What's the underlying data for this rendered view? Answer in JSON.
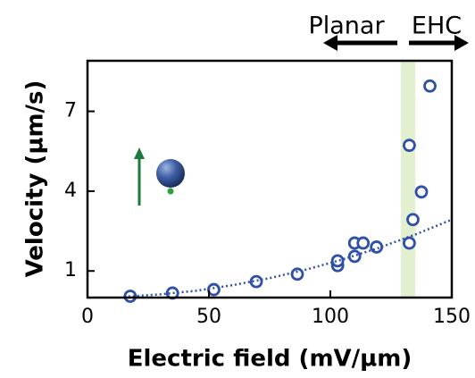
{
  "chart_data": {
    "type": "scatter",
    "x_label": "Electric field (mV/µm)",
    "y_label": "Velocity (µm/s)",
    "xlim": [
      0,
      150
    ],
    "ylim": [
      0,
      8.9
    ],
    "xticks": [
      0,
      50,
      100,
      150
    ],
    "yticks": [
      1,
      4,
      7
    ],
    "band": {
      "xrange": [
        129,
        135
      ],
      "color": "#e3f0d0"
    },
    "annotations": [
      {
        "text": "Planar",
        "direction": "left"
      },
      {
        "text": "EHC",
        "direction": "right"
      }
    ],
    "series": [
      {
        "style": "markers",
        "color": "#2f4fa8",
        "x": [
          17.6,
          35,
          52,
          69.5,
          86.4,
          103,
          103,
          110,
          110,
          113.5,
          119,
          132.5,
          134,
          137.5,
          132.5,
          141
        ],
        "values": [
          0.05,
          0.17,
          0.3,
          0.6,
          0.88,
          1.2,
          1.38,
          1.55,
          2.05,
          2.05,
          1.9,
          2.05,
          2.93,
          3.97,
          5.72,
          7.95
        ]
      },
      {
        "style": "dotted-line",
        "color": "#2f4fa8",
        "x": [
          15,
          30,
          45,
          60,
          75,
          90,
          105,
          120,
          135,
          150
        ],
        "values": [
          0.03,
          0.12,
          0.26,
          0.47,
          0.73,
          1.05,
          1.43,
          1.87,
          2.37,
          2.93
        ]
      }
    ]
  }
}
